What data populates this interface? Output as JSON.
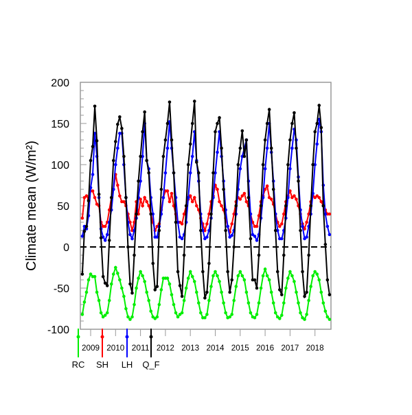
{
  "chart_data": {
    "type": "line",
    "title": "",
    "xlabel": "",
    "ylabel": "Climate mean (W/m²)",
    "ylim": [
      -100,
      200
    ],
    "xlim": [
      "2008-08",
      "2018-08"
    ],
    "yticks": [
      -100,
      -50,
      0,
      50,
      100,
      150,
      200
    ],
    "xticks": [
      "2009",
      "2010",
      "2011",
      "2012",
      "2013",
      "2014",
      "2015",
      "2016",
      "2017",
      "2018"
    ],
    "x_start": "2008-09",
    "x_step": "monthly",
    "grid": false,
    "zero_line": "dashed",
    "legend": "bottom",
    "series": [
      {
        "name": "RC",
        "color": "#00ee00",
        "values": [
          -82,
          -67,
          -55,
          -40,
          -33,
          -36,
          -36,
          -55,
          -65,
          -80,
          -85,
          -83,
          -80,
          -65,
          -45,
          -33,
          -25,
          -32,
          -40,
          -50,
          -60,
          -75,
          -85,
          -88,
          -85,
          -70,
          -50,
          -38,
          -30,
          -35,
          -42,
          -55,
          -65,
          -78,
          -85,
          -87,
          -85,
          -70,
          -52,
          -38,
          -38,
          -38,
          -45,
          -58,
          -70,
          -80,
          -85,
          -82,
          -80,
          -65,
          -50,
          -38,
          -30,
          -36,
          -42,
          -55,
          -68,
          -80,
          -86,
          -86,
          -82,
          -65,
          -48,
          -35,
          -30,
          -35,
          -42,
          -55,
          -68,
          -80,
          -86,
          -85,
          -82,
          -65,
          -48,
          -35,
          -30,
          -35,
          -40,
          -55,
          -68,
          -80,
          -85,
          -86,
          -82,
          -68,
          -50,
          -35,
          -27,
          -35,
          -40,
          -55,
          -68,
          -80,
          -85,
          -87,
          -83,
          -68,
          -50,
          -38,
          -30,
          -35,
          -42,
          -55,
          -68,
          -80,
          -86,
          -88,
          -82,
          -65,
          -48,
          -35,
          -30,
          -33,
          -40,
          -55,
          -68,
          -78,
          -85,
          -88
        ]
      },
      {
        "name": "SH",
        "color": "#ff0000",
        "values": [
          35,
          60,
          62,
          58,
          68,
          68,
          60,
          52,
          50,
          30,
          25,
          25,
          30,
          45,
          60,
          70,
          88,
          75,
          62,
          55,
          55,
          50,
          40,
          30,
          20,
          30,
          55,
          40,
          58,
          50,
          60,
          55,
          50,
          40,
          30,
          20,
          25,
          28,
          45,
          60,
          68,
          68,
          55,
          65,
          50,
          40,
          30,
          30,
          28,
          40,
          50,
          58,
          62,
          55,
          60,
          50,
          45,
          35,
          28,
          20,
          28,
          40,
          55,
          62,
          75,
          70,
          55,
          50,
          45,
          35,
          25,
          18,
          28,
          40,
          55,
          60,
          58,
          62,
          65,
          55,
          50,
          40,
          30,
          25,
          25,
          38,
          55,
          62,
          70,
          74,
          60,
          58,
          52,
          40,
          30,
          25,
          28,
          40,
          55,
          62,
          68,
          60,
          62,
          58,
          50,
          40,
          28,
          22,
          30,
          40,
          55,
          62,
          60,
          62,
          60,
          55,
          50,
          45,
          40,
          40
        ]
      },
      {
        "name": "LH",
        "color": "#0000ff",
        "values": [
          13,
          25,
          22,
          38,
          72,
          88,
          138,
          110,
          60,
          22,
          12,
          8,
          15,
          30,
          45,
          70,
          100,
          120,
          138,
          138,
          100,
          60,
          30,
          15,
          10,
          20,
          35,
          60,
          80,
          110,
          150,
          105,
          95,
          60,
          40,
          12,
          12,
          25,
          40,
          60,
          90,
          120,
          152,
          120,
          90,
          60,
          30,
          12,
          10,
          15,
          30,
          60,
          90,
          110,
          140,
          105,
          80,
          40,
          20,
          10,
          12,
          20,
          35,
          60,
          90,
          115,
          140,
          110,
          80,
          45,
          25,
          12,
          14,
          20,
          40,
          70,
          95,
          110,
          120,
          130,
          80,
          40,
          15,
          13,
          8,
          15,
          35,
          60,
          95,
          120,
          150,
          115,
          80,
          40,
          20,
          10,
          10,
          20,
          35,
          60,
          95,
          120,
          143,
          130,
          85,
          45,
          25,
          10,
          12,
          25,
          40,
          65,
          100,
          125,
          155,
          140,
          75,
          40,
          25,
          15
        ]
      },
      {
        "name": "Q_F",
        "color": "#000000",
        "values": [
          -33,
          19,
          25,
          56,
          105,
          122,
          171,
          129,
          64,
          11,
          -36,
          -44,
          -47,
          8,
          60,
          105,
          128,
          149,
          158,
          144,
          110,
          60,
          0,
          -45,
          -56,
          -10,
          40,
          80,
          110,
          140,
          164,
          105,
          90,
          40,
          -20,
          -52,
          -48,
          20,
          70,
          110,
          130,
          150,
          176,
          130,
          90,
          30,
          -30,
          -47,
          -60,
          -10,
          50,
          100,
          125,
          150,
          177,
          103,
          90,
          20,
          -30,
          -62,
          -55,
          -20,
          40,
          90,
          140,
          150,
          157,
          120,
          70,
          20,
          -30,
          -55,
          -40,
          0,
          50,
          100,
          120,
          141,
          110,
          130,
          60,
          10,
          -40,
          -40,
          -50,
          -10,
          50,
          100,
          130,
          150,
          167,
          120,
          70,
          20,
          -30,
          -52,
          -58,
          -10,
          50,
          100,
          130,
          150,
          163,
          120,
          80,
          20,
          -30,
          -60,
          -55,
          -10,
          50,
          100,
          140,
          150,
          172,
          145,
          50,
          3,
          -40,
          -58
        ]
      }
    ]
  }
}
